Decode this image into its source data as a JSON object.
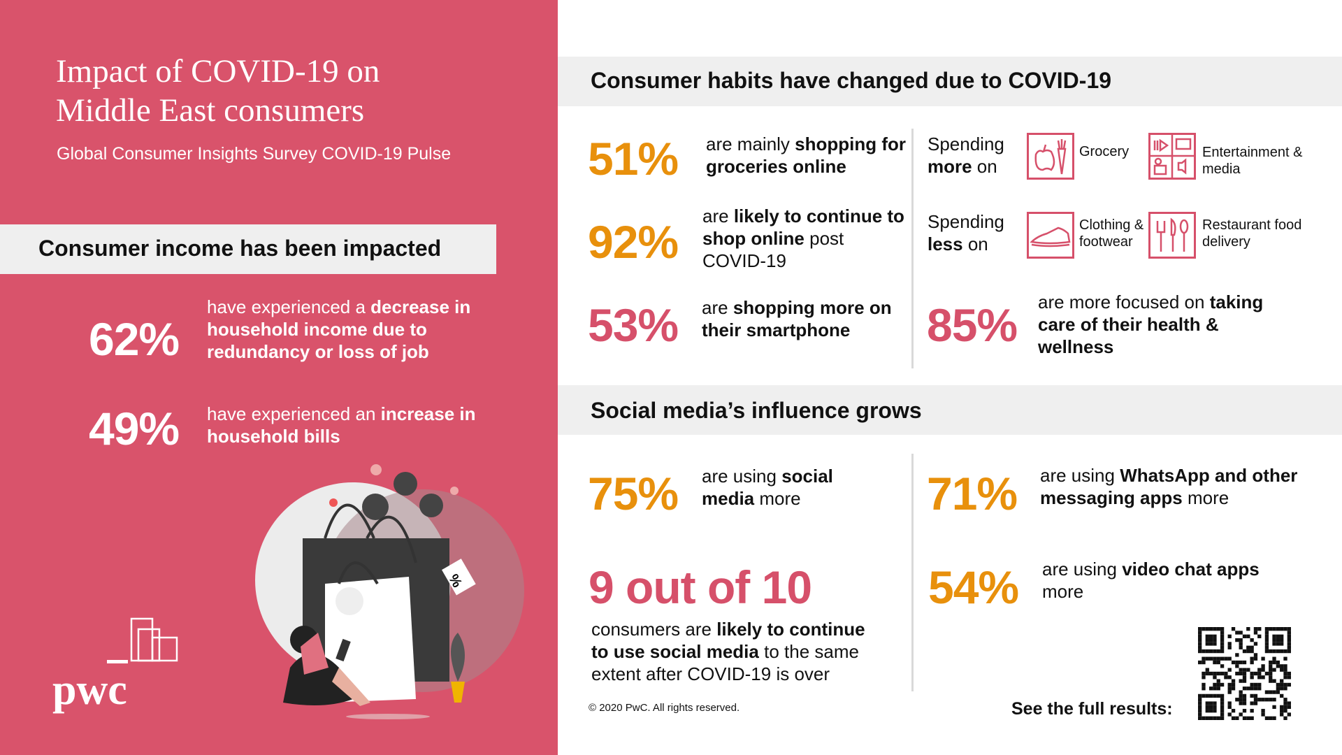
{
  "left": {
    "title_lines": [
      "Impact of COVID-19 on",
      "Middle East consumers"
    ],
    "subtitle": "Global Consumer Insights Survey COVID-19 Pulse",
    "income_heading": "Consumer income has been impacted",
    "stats": [
      {
        "value": "62%",
        "text": [
          {
            "t": "have experienced a "
          },
          {
            "t": "decrease in household income due to redundancy or loss of job",
            "b": true
          }
        ]
      },
      {
        "value": "49%",
        "text": [
          {
            "t": "have experienced an "
          },
          {
            "t": "increase in household bills",
            "b": true
          }
        ]
      }
    ],
    "logo_text": "pwc"
  },
  "habits": {
    "heading": "Consumer habits have changed due to COVID-19",
    "stats": [
      {
        "value": "51%",
        "text": [
          {
            "t": "are mainly "
          },
          {
            "t": "shopping for groceries online",
            "b": true
          }
        ]
      },
      {
        "value": "92%",
        "text": [
          {
            "t": "are "
          },
          {
            "t": "likely to continue to shop online",
            "b": true
          },
          {
            "t": " post COVID-19"
          }
        ]
      },
      {
        "value": "53%",
        "text": [
          {
            "t": "are "
          },
          {
            "t": "shopping more on their smartphone",
            "b": true
          }
        ]
      },
      {
        "value": "85%",
        "text": [
          {
            "t": "are more focused on "
          },
          {
            "t": "taking care of their health & wellness",
            "b": true
          }
        ]
      }
    ],
    "spending_more": {
      "pre": "Spending",
      "bold": "more",
      "post": " on",
      "items": [
        {
          "label": "Grocery",
          "icon": "grocery-icon"
        },
        {
          "label": "Entertainment & media",
          "icon": "entertainment-icon"
        }
      ]
    },
    "spending_less": {
      "pre": "Spending",
      "bold": "less",
      "post": " on",
      "items": [
        {
          "label": "Clothing & footwear",
          "icon": "shoe-icon"
        },
        {
          "label": "Restaurant food delivery",
          "icon": "cutlery-icon"
        }
      ]
    }
  },
  "social": {
    "heading": "Social media’s influence grows",
    "stats": [
      {
        "value": "75%",
        "text": [
          {
            "t": "are using "
          },
          {
            "t": "social media",
            "b": true
          },
          {
            "t": " more"
          }
        ]
      },
      {
        "value": "71%",
        "text": [
          {
            "t": "are using "
          },
          {
            "t": "WhatsApp and other messaging apps",
            "b": true
          },
          {
            "t": " more"
          }
        ]
      },
      {
        "value": "9 out of 10",
        "text": [
          {
            "t": "consumers are "
          },
          {
            "t": "likely to continue to use social media",
            "b": true
          },
          {
            "t": " to the same extent after COVID-19 is over"
          }
        ]
      },
      {
        "value": "54%",
        "text": [
          {
            "t": "are using "
          },
          {
            "t": "video chat apps",
            "b": true
          },
          {
            "t": " more"
          }
        ]
      }
    ]
  },
  "footer": {
    "copyright": "© 2020 PwC. All rights reserved.",
    "see_results": "See the full results:"
  },
  "colors": {
    "brand_pink": "#d9536b",
    "orange": "#e8900c",
    "pink_text": "#d6506a"
  }
}
